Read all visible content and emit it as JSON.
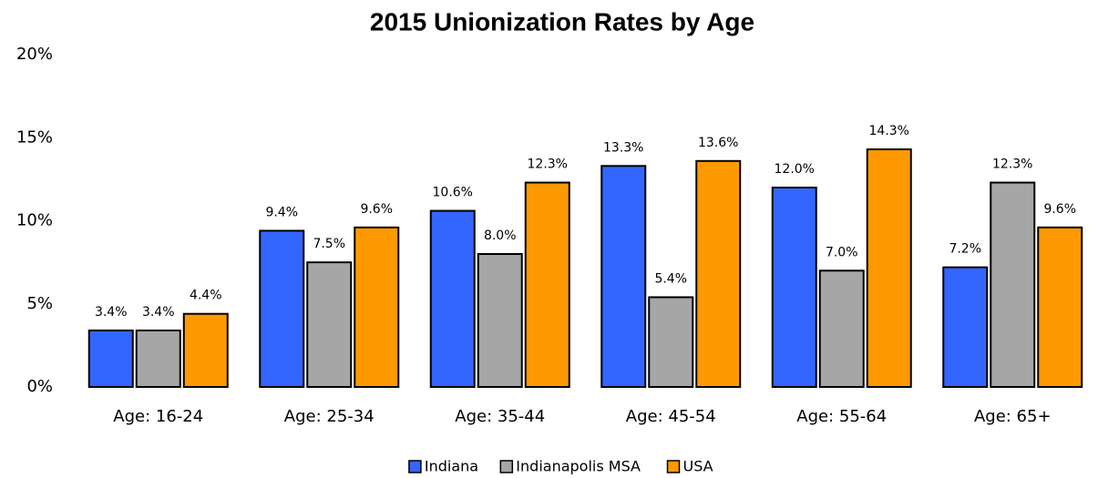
{
  "chart_data": {
    "type": "bar",
    "title": "2015 Unionization Rates by Age",
    "categories": [
      "Age: 16-24",
      "Age: 25-34",
      "Age: 35-44",
      "Age: 45-54",
      "Age: 55-64",
      "Age: 65+"
    ],
    "series": [
      {
        "name": "Indiana",
        "color": "#3366ff",
        "values": [
          3.4,
          9.4,
          10.6,
          13.3,
          12.0,
          7.2
        ],
        "value_labels": [
          "3.4%",
          "9.4%",
          "10.6%",
          "13.3%",
          "12.0%",
          "7.2%"
        ]
      },
      {
        "name": "Indianapolis MSA",
        "color": "#a6a6a6",
        "values": [
          3.4,
          7.5,
          8.0,
          5.4,
          7.0,
          12.3
        ],
        "value_labels": [
          "3.4%",
          "7.5%",
          "8.0%",
          "5.4%",
          "7.0%",
          "12.3%"
        ]
      },
      {
        "name": "USA",
        "color": "#ff9900",
        "values": [
          4.4,
          9.6,
          12.3,
          13.6,
          14.3,
          9.6
        ],
        "value_labels": [
          "4.4%",
          "9.6%",
          "12.3%",
          "13.6%",
          "14.3%",
          "9.6%"
        ]
      }
    ],
    "ylim": [
      0,
      20
    ],
    "yticks": [
      {
        "value": 0,
        "label": "0%"
      },
      {
        "value": 5,
        "label": "5%"
      },
      {
        "value": 10,
        "label": "10%"
      },
      {
        "value": 15,
        "label": "15%"
      },
      {
        "value": 20,
        "label": "20%"
      }
    ],
    "grid": false,
    "legend": "bottom"
  }
}
